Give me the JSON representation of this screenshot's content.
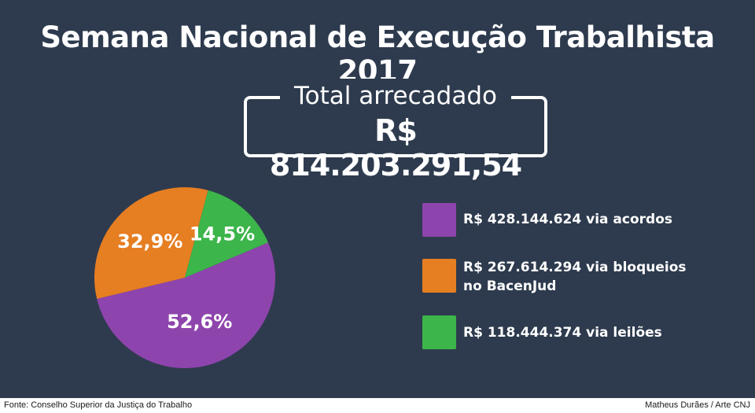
{
  "title": "Semana Nacional de Execução Trabalhista 2017",
  "total": {
    "label": "Total arrecadado",
    "value": "R$ 814.203.291,54"
  },
  "chart_data": {
    "type": "pie",
    "slices": [
      {
        "label": "52,6%",
        "value": 52.6,
        "color": "#8e44ad"
      },
      {
        "label": "32,9%",
        "value": 32.9,
        "color": "#e67e22"
      },
      {
        "label": "14,5%",
        "value": 14.5,
        "color": "#3cb54a"
      }
    ]
  },
  "legend": [
    {
      "lines": [
        "R$ 428.144.624  via acordos"
      ],
      "color": "#8e44ad"
    },
    {
      "lines": [
        "R$ 267.614.294 via bloqueios",
        "no BacenJud"
      ],
      "color": "#e67e22"
    },
    {
      "lines": [
        "R$ 118.444.374 via leilões"
      ],
      "color": "#3cb54a"
    }
  ],
  "footer": {
    "source": "Fonte: Conselho Superior da Justiça do Trabalho",
    "credit": "Matheus Durães / Arte CNJ"
  }
}
